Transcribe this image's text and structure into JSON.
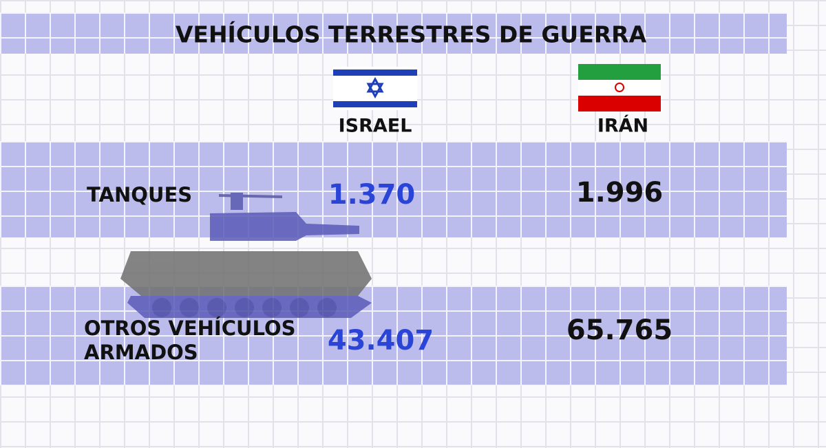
{
  "header": {
    "title": "VEHÍCULOS TERRESTRES DE GUERRA"
  },
  "table": {
    "columns": [
      "ISRAEL",
      "IRÁN"
    ],
    "rows": [
      [
        "TANQUES",
        "1.370",
        "1.996"
      ],
      [
        "OTROS VEHÍCULOS ARMADOS",
        "43.407",
        "65.765"
      ]
    ]
  }
}
